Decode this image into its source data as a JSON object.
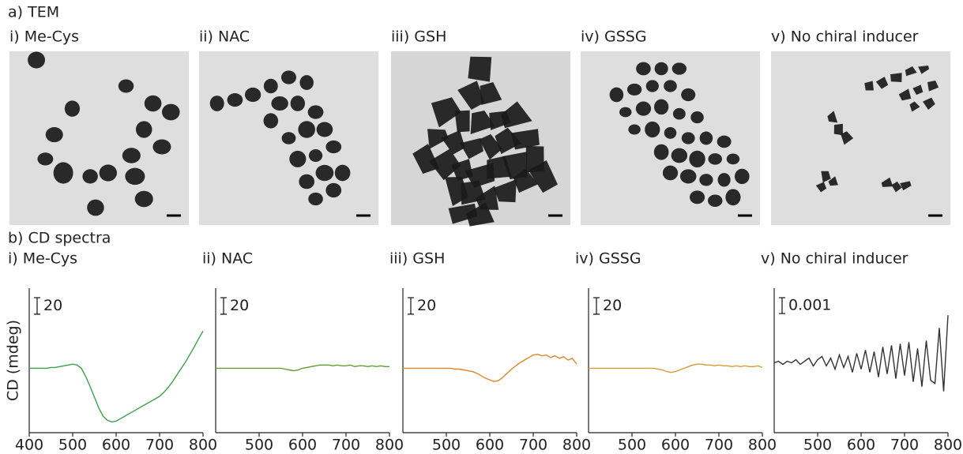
{
  "tem": {
    "title": "a) TEM",
    "panels": [
      "i) Me-Cys",
      "ii) NAC",
      "iii) GSH",
      "iv) GSSG",
      "v) No chiral inducer"
    ]
  },
  "cd_title": "b) CD spectra",
  "chart_data": [
    {
      "type": "line",
      "title": "i) Me-Cys",
      "ylabel": "CD (mdeg)",
      "scale_bar": 20,
      "color": "#3f9f4a",
      "x": [
        400,
        410,
        420,
        430,
        440,
        450,
        460,
        470,
        480,
        490,
        500,
        510,
        520,
        530,
        540,
        550,
        560,
        570,
        580,
        590,
        600,
        610,
        620,
        630,
        640,
        650,
        660,
        670,
        680,
        690,
        700,
        710,
        720,
        730,
        740,
        750,
        760,
        770,
        780,
        790,
        800
      ],
      "values": [
        0,
        0,
        0,
        0,
        0,
        1,
        1,
        2,
        3,
        4,
        5,
        4,
        0,
        -10,
        -22,
        -35,
        -48,
        -58,
        -63,
        -65,
        -64,
        -61,
        -58,
        -55,
        -52,
        -49,
        -46,
        -43,
        -40,
        -37,
        -34,
        -29,
        -23,
        -16,
        -8,
        0,
        8,
        17,
        26,
        36,
        45
      ],
      "xlim": [
        400,
        800
      ],
      "xticks": [
        400,
        500,
        600,
        700,
        800
      ],
      "ylim": [
        -78,
        97
      ]
    },
    {
      "type": "line",
      "title": "ii) NAC",
      "scale_bar": 20,
      "color": "#5f9e35",
      "x": [
        400,
        410,
        420,
        430,
        440,
        450,
        460,
        470,
        480,
        490,
        500,
        510,
        520,
        530,
        540,
        550,
        560,
        570,
        580,
        590,
        600,
        610,
        620,
        630,
        640,
        650,
        660,
        670,
        680,
        690,
        700,
        710,
        720,
        730,
        740,
        750,
        760,
        770,
        780,
        790,
        800
      ],
      "values": [
        0,
        0,
        0,
        0,
        0,
        0,
        0,
        0,
        0,
        0,
        0,
        0,
        0,
        0,
        0,
        0,
        -1,
        -2,
        -3,
        -2,
        0,
        1,
        2,
        3,
        4,
        4,
        4,
        3,
        4,
        3,
        3,
        4,
        2,
        3,
        3,
        2,
        3,
        2,
        3,
        2,
        2
      ],
      "xlim": [
        400,
        800
      ],
      "xticks": [
        500,
        600,
        700,
        800
      ],
      "ylim": [
        -78,
        97
      ]
    },
    {
      "type": "line",
      "title": "iii) GSH",
      "scale_bar": 20,
      "color": "#e0862a",
      "x": [
        400,
        410,
        420,
        430,
        440,
        450,
        460,
        470,
        480,
        490,
        500,
        510,
        520,
        530,
        540,
        550,
        560,
        570,
        580,
        590,
        600,
        610,
        620,
        630,
        640,
        650,
        660,
        670,
        680,
        690,
        700,
        710,
        720,
        730,
        740,
        750,
        760,
        770,
        780,
        790,
        800
      ],
      "values": [
        0,
        0,
        0,
        0,
        0,
        0,
        0,
        0,
        0,
        0,
        0,
        0,
        -1,
        -1,
        -2,
        -3,
        -4,
        -6,
        -9,
        -12,
        -14,
        -16,
        -15,
        -11,
        -6,
        -1,
        3,
        7,
        10,
        13,
        16,
        17,
        15,
        16,
        13,
        15,
        12,
        14,
        10,
        12,
        5
      ],
      "xlim": [
        400,
        800
      ],
      "xticks": [
        500,
        600,
        700,
        800
      ],
      "ylim": [
        -78,
        97
      ]
    },
    {
      "type": "line",
      "title": "iv) GSSG",
      "scale_bar": 20,
      "color": "#d69b34",
      "x": [
        400,
        410,
        420,
        430,
        440,
        450,
        460,
        470,
        480,
        490,
        500,
        510,
        520,
        530,
        540,
        550,
        560,
        570,
        580,
        590,
        600,
        610,
        620,
        630,
        640,
        650,
        660,
        670,
        680,
        690,
        700,
        710,
        720,
        730,
        740,
        750,
        760,
        770,
        780,
        790,
        800
      ],
      "values": [
        0,
        0,
        0,
        0,
        0,
        0,
        0,
        0,
        0,
        0,
        0,
        0,
        0,
        0,
        0,
        0,
        -1,
        -2,
        -4,
        -5,
        -4,
        -2,
        0,
        2,
        4,
        5,
        5,
        4,
        4,
        3,
        4,
        3,
        3,
        2,
        3,
        2,
        3,
        2,
        2,
        3,
        1
      ],
      "xlim": [
        400,
        800
      ],
      "xticks": [
        500,
        600,
        700,
        800
      ],
      "ylim": [
        -78,
        97
      ]
    },
    {
      "type": "line",
      "title": "v) No chiral inducer",
      "scale_bar": 0.001,
      "color": "#333333",
      "x": [
        400,
        410,
        420,
        430,
        440,
        450,
        460,
        470,
        480,
        490,
        500,
        510,
        520,
        530,
        540,
        550,
        560,
        570,
        580,
        590,
        600,
        610,
        620,
        630,
        640,
        650,
        660,
        670,
        680,
        690,
        700,
        710,
        720,
        730,
        740,
        750,
        760,
        770,
        780,
        790,
        800
      ],
      "values": [
        0,
        0.0001,
        -0.0001,
        0.0001,
        0,
        0.0002,
        -0.0001,
        0.0001,
        0.0003,
        -0.0002,
        0.0002,
        0.0004,
        -0.0002,
        0.0003,
        -0.0004,
        0.0005,
        -0.0003,
        0.0004,
        -0.0006,
        0.0006,
        -0.0004,
        0.0008,
        -0.0006,
        0.0007,
        -0.0009,
        0.001,
        -0.0007,
        0.0011,
        -0.001,
        0.0012,
        -0.0008,
        0.0013,
        -0.0012,
        0.0009,
        -0.0015,
        0.0014,
        -0.0011,
        -0.0013,
        0.0022,
        -0.0018,
        0.003
      ],
      "xlim": [
        400,
        800
      ],
      "xticks": [
        500,
        600,
        700,
        800
      ],
      "ylim": [
        -0.0044,
        0.0047
      ]
    }
  ]
}
